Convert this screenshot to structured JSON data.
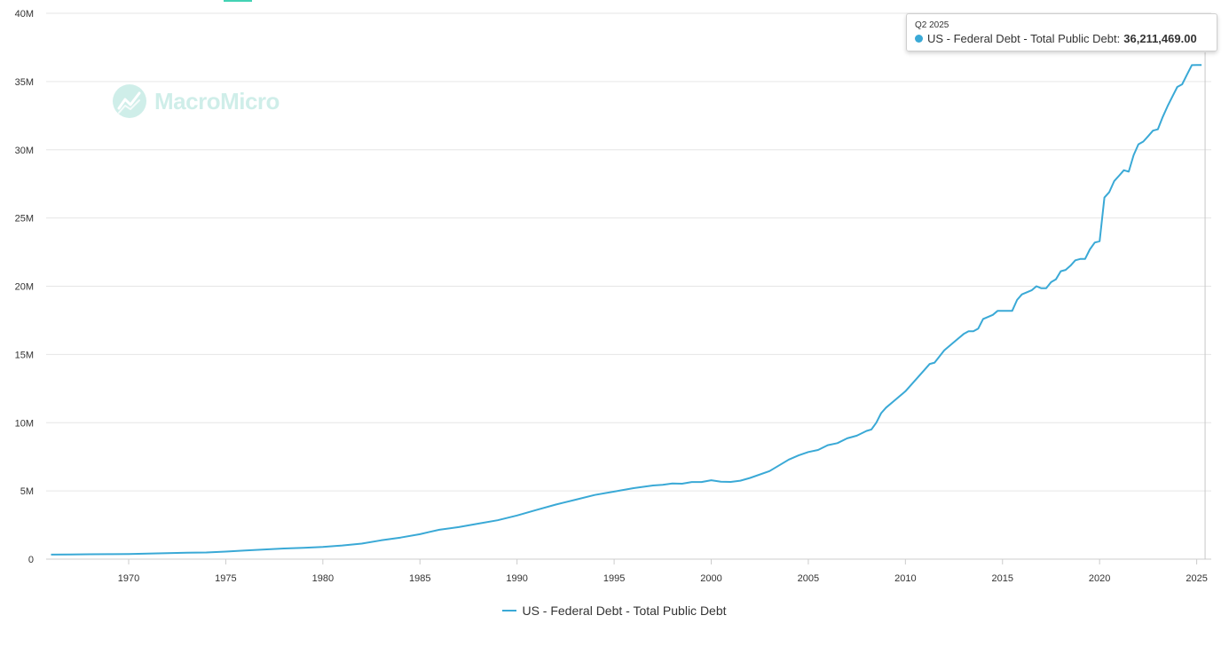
{
  "colors": {
    "series": "#3aa9d6",
    "brand": "#2bb3a0",
    "tab": "#43d2b4"
  },
  "watermark": {
    "text": "MacroMicro",
    "icon": "macromicro-logo-icon"
  },
  "tooltip": {
    "date": "Q2 2025",
    "series_name": "US - Federal Debt - Total Public Debt:",
    "value": "36,211,469.00"
  },
  "legend": {
    "label": "US - Federal Debt - Total Public Debt"
  },
  "chart_data": {
    "type": "line",
    "title": "",
    "xlabel": "",
    "ylabel": "",
    "x_range": [
      1965.75,
      2025.75
    ],
    "ylim": [
      0,
      40000000
    ],
    "y_ticks": [
      0,
      5000000,
      10000000,
      15000000,
      20000000,
      25000000,
      30000000,
      35000000,
      40000000
    ],
    "y_tick_labels": [
      "0",
      "5M",
      "10M",
      "15M",
      "20M",
      "25M",
      "30M",
      "35M",
      "40M"
    ],
    "x_ticks": [
      1970,
      1975,
      1980,
      1985,
      1990,
      1995,
      2000,
      2005,
      2010,
      2015,
      2020,
      2025
    ],
    "x_tick_labels": [
      "1970",
      "1975",
      "1980",
      "1985",
      "1990",
      "1995",
      "2000",
      "2005",
      "2010",
      "2015",
      "2020",
      "2025"
    ],
    "grid": true,
    "legend_position": "bottom-center",
    "highlight": {
      "x": 2025.25,
      "label": "Q2 2025",
      "value": 36211469
    },
    "series": [
      {
        "name": "US - Federal Debt - Total Public Debt",
        "x": [
          1966.0,
          1967.0,
          1968.0,
          1969.0,
          1970.0,
          1971.0,
          1972.0,
          1973.0,
          1974.0,
          1975.0,
          1976.0,
          1977.0,
          1978.0,
          1979.0,
          1980.0,
          1981.0,
          1982.0,
          1983.0,
          1984.0,
          1985.0,
          1985.5,
          1986.0,
          1987.0,
          1988.0,
          1989.0,
          1990.0,
          1991.0,
          1992.0,
          1993.0,
          1994.0,
          1995.0,
          1996.0,
          1997.0,
          1997.5,
          1998.0,
          1998.5,
          1999.0,
          1999.5,
          2000.0,
          2000.5,
          2001.0,
          2001.5,
          2002.0,
          2003.0,
          2004.0,
          2004.5,
          2005.0,
          2005.5,
          2006.0,
          2006.5,
          2007.0,
          2007.5,
          2008.0,
          2008.25,
          2008.5,
          2008.75,
          2009.0,
          2009.5,
          2010.0,
          2010.5,
          2011.0,
          2011.25,
          2011.5,
          2012.0,
          2012.5,
          2013.0,
          2013.25,
          2013.5,
          2013.75,
          2014.0,
          2014.5,
          2014.75,
          2015.0,
          2015.5,
          2015.75,
          2016.0,
          2016.5,
          2016.75,
          2017.0,
          2017.25,
          2017.5,
          2017.75,
          2018.0,
          2018.25,
          2018.5,
          2018.75,
          2019.0,
          2019.25,
          2019.5,
          2019.75,
          2020.0,
          2020.25,
          2020.5,
          2020.75,
          2021.0,
          2021.25,
          2021.5,
          2021.75,
          2022.0,
          2022.25,
          2022.5,
          2022.75,
          2023.0,
          2023.25,
          2023.5,
          2023.75,
          2024.0,
          2024.25,
          2024.5,
          2024.75,
          2025.0,
          2025.25
        ],
        "values": [
          330000,
          340000,
          360000,
          365000,
          380000,
          410000,
          440000,
          470000,
          490000,
          550000,
          640000,
          710000,
          780000,
          830000,
          900000,
          1000000,
          1140000,
          1380000,
          1580000,
          1830000,
          2000000,
          2150000,
          2350000,
          2600000,
          2850000,
          3200000,
          3600000,
          4000000,
          4350000,
          4700000,
          4950000,
          5200000,
          5400000,
          5450000,
          5550000,
          5530000,
          5650000,
          5650000,
          5780000,
          5680000,
          5660000,
          5750000,
          5950000,
          6450000,
          7300000,
          7600000,
          7850000,
          8000000,
          8350000,
          8500000,
          8850000,
          9050000,
          9400000,
          9500000,
          10000000,
          10700000,
          11100000,
          11700000,
          12300000,
          13100000,
          13900000,
          14300000,
          14400000,
          15300000,
          15900000,
          16500000,
          16700000,
          16700000,
          16900000,
          17600000,
          17900000,
          18200000,
          18200000,
          18200000,
          19000000,
          19400000,
          19700000,
          20000000,
          19850000,
          19850000,
          20300000,
          20500000,
          21100000,
          21200000,
          21500000,
          21900000,
          22000000,
          22000000,
          22700000,
          23200000,
          23300000,
          26500000,
          26900000,
          27700000,
          28100000,
          28500000,
          28400000,
          29600000,
          30400000,
          30600000,
          31000000,
          31400000,
          31500000,
          32400000,
          33200000,
          33900000,
          34600000,
          34800000,
          35500000,
          36200000,
          36210000,
          36211469
        ],
        "color": "#3aa9d6"
      }
    ]
  }
}
